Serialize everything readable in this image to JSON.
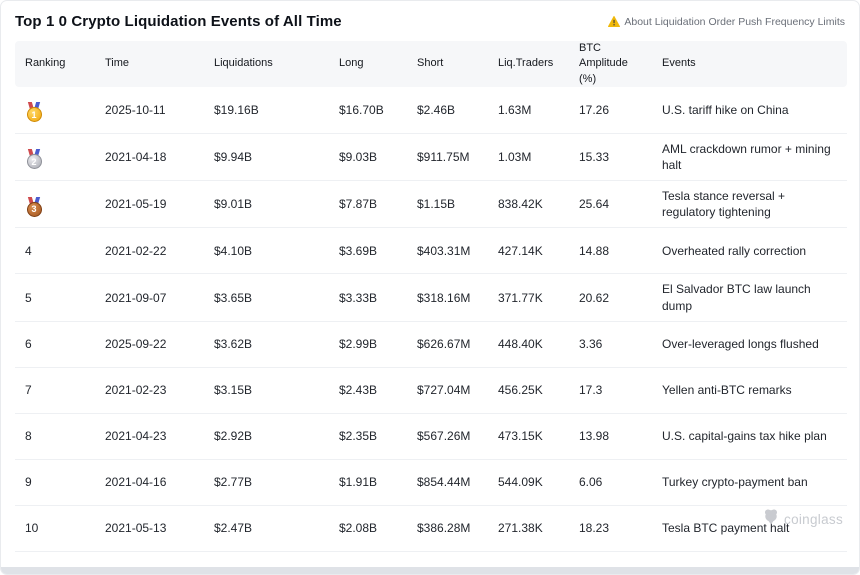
{
  "header": {
    "title": "Top 1 0 Crypto Liquidation Events of All Time",
    "notice_label": "About Liquidation Order Push Frequency Limits"
  },
  "table": {
    "columns": [
      {
        "key": "ranking",
        "label": "Ranking"
      },
      {
        "key": "time",
        "label": "Time"
      },
      {
        "key": "liquidations",
        "label": "Liquidations"
      },
      {
        "key": "long",
        "label": "Long"
      },
      {
        "key": "short",
        "label": "Short"
      },
      {
        "key": "liq_traders",
        "label": "Liq.Traders"
      },
      {
        "key": "btc_amplitude",
        "label": "BTC Amplitude (%)"
      },
      {
        "key": "events",
        "label": "Events"
      }
    ],
    "rows": [
      {
        "ranking": "1",
        "medal": "gold",
        "time": "2025-10-11",
        "liquidations": "$19.16B",
        "long": "$16.70B",
        "short": "$2.46B",
        "liq_traders": "1.63M",
        "btc_amplitude": "17.26",
        "events": "U.S. tariff hike on China"
      },
      {
        "ranking": "2",
        "medal": "silver",
        "time": "2021-04-18",
        "liquidations": "$9.94B",
        "long": "$9.03B",
        "short": "$911.75M",
        "liq_traders": "1.03M",
        "btc_amplitude": "15.33",
        "events": "AML crackdown rumor + mining halt"
      },
      {
        "ranking": "3",
        "medal": "bronze",
        "time": "2021-05-19",
        "liquidations": "$9.01B",
        "long": "$7.87B",
        "short": "$1.15B",
        "liq_traders": "838.42K",
        "btc_amplitude": "25.64",
        "events": "Tesla stance reversal + regulatory tightening"
      },
      {
        "ranking": "4",
        "medal": null,
        "time": "2021-02-22",
        "liquidations": "$4.10B",
        "long": "$3.69B",
        "short": "$403.31M",
        "liq_traders": "427.14K",
        "btc_amplitude": "14.88",
        "events": "Overheated rally correction"
      },
      {
        "ranking": "5",
        "medal": null,
        "time": "2021-09-07",
        "liquidations": "$3.65B",
        "long": "$3.33B",
        "short": "$318.16M",
        "liq_traders": "371.77K",
        "btc_amplitude": "20.62",
        "events": "El Salvador BTC law launch dump"
      },
      {
        "ranking": "6",
        "medal": null,
        "time": "2025-09-22",
        "liquidations": "$3.62B",
        "long": "$2.99B",
        "short": "$626.67M",
        "liq_traders": "448.40K",
        "btc_amplitude": "3.36",
        "events": "Over-leveraged longs flushed"
      },
      {
        "ranking": "7",
        "medal": null,
        "time": "2021-02-23",
        "liquidations": "$3.15B",
        "long": "$2.43B",
        "short": "$727.04M",
        "liq_traders": "456.25K",
        "btc_amplitude": "17.3",
        "events": "Yellen anti-BTC remarks"
      },
      {
        "ranking": "8",
        "medal": null,
        "time": "2021-04-23",
        "liquidations": "$2.92B",
        "long": "$2.35B",
        "short": "$567.26M",
        "liq_traders": "473.15K",
        "btc_amplitude": "13.98",
        "events": "U.S. capital-gains tax hike plan"
      },
      {
        "ranking": "9",
        "medal": null,
        "time": "2021-04-16",
        "liquidations": "$2.77B",
        "long": "$1.91B",
        "short": "$854.44M",
        "liq_traders": "544.09K",
        "btc_amplitude": "6.06",
        "events": "Turkey crypto-payment ban"
      },
      {
        "ranking": "10",
        "medal": null,
        "time": "2021-05-13",
        "liquidations": "$2.47B",
        "long": "$2.08B",
        "short": "$386.28M",
        "liq_traders": "271.38K",
        "btc_amplitude": "18.23",
        "events": "Tesla BTC payment halt"
      }
    ]
  },
  "watermark": {
    "label": "coinglass"
  },
  "colors": {
    "warning_icon": "#f0b90b",
    "header_bg": "#f6f7f9",
    "row_border": "#eef0f3",
    "body_text": "#22262d",
    "notice_text": "#6a6f78",
    "watermark_gray": "#c8cbd0",
    "medal_gold": "#f0a50a",
    "medal_silver": "#a6a8b0",
    "medal_bronze": "#a2541e"
  }
}
